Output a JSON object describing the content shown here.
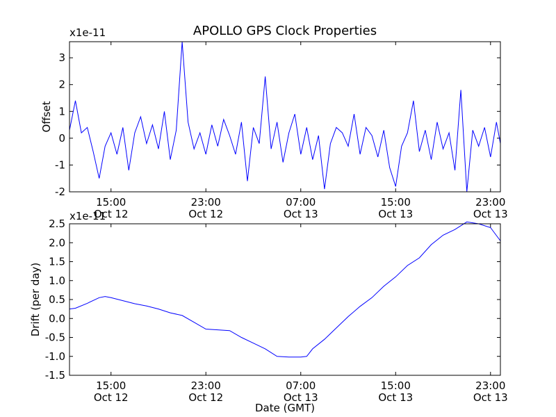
{
  "figure": {
    "title": "APOLLO GPS Clock Properties",
    "xlabel": "Date (GMT)",
    "line_color": "#0000ff"
  },
  "chart_data": [
    {
      "type": "line",
      "title": "APOLLO GPS Clock Properties",
      "ylabel": "Offset",
      "offset_text": "x1e-11",
      "xlabel": "",
      "x_range": [
        "Oct 12 11:30",
        "Oct 13 23:50"
      ],
      "ylim": [
        -2,
        3.6
      ],
      "y_ticks": [
        -2,
        -1,
        0,
        1,
        2,
        3
      ],
      "y_tick_labels": [
        "-2",
        "-1",
        "0",
        "1",
        "2",
        "3"
      ],
      "x_ticks": [
        "Oct 12 15:00",
        "Oct 12 23:00",
        "Oct 13 07:00",
        "Oct 13 15:00",
        "Oct 13 23:00"
      ],
      "x_tick_labels": [
        {
          "time": "15:00",
          "date": "Oct 12"
        },
        {
          "time": "23:00",
          "date": "Oct 12"
        },
        {
          "time": "07:00",
          "date": "Oct 13"
        },
        {
          "time": "15:00",
          "date": "Oct 13"
        },
        {
          "time": "23:00",
          "date": "Oct 13"
        }
      ],
      "grid": false,
      "series": [
        {
          "x": [
            "Oct 12 11:30",
            "Oct 12 12:00",
            "Oct 12 12:30",
            "Oct 12 13:00",
            "Oct 12 13:30",
            "Oct 12 14:00",
            "Oct 12 14:30",
            "Oct 12 15:00",
            "Oct 12 15:30",
            "Oct 12 16:00",
            "Oct 12 16:30",
            "Oct 12 17:00",
            "Oct 12 17:30",
            "Oct 12 18:00",
            "Oct 12 18:30",
            "Oct 12 19:00",
            "Oct 12 19:30",
            "Oct 12 20:00",
            "Oct 12 20:30",
            "Oct 12 21:00",
            "Oct 12 21:30",
            "Oct 12 22:00",
            "Oct 12 22:30",
            "Oct 12 23:00",
            "Oct 12 23:30",
            "Oct 13 00:00",
            "Oct 13 00:30",
            "Oct 13 01:00",
            "Oct 13 01:30",
            "Oct 13 02:00",
            "Oct 13 02:30",
            "Oct 13 03:00",
            "Oct 13 03:30",
            "Oct 13 04:00",
            "Oct 13 04:30",
            "Oct 13 05:00",
            "Oct 13 05:30",
            "Oct 13 06:00",
            "Oct 13 06:30",
            "Oct 13 07:00",
            "Oct 13 07:30",
            "Oct 13 08:00",
            "Oct 13 08:30",
            "Oct 13 09:00",
            "Oct 13 09:30",
            "Oct 13 10:00",
            "Oct 13 10:30",
            "Oct 13 11:00",
            "Oct 13 11:30",
            "Oct 13 12:00",
            "Oct 13 12:30",
            "Oct 13 13:00",
            "Oct 13 13:30",
            "Oct 13 14:00",
            "Oct 13 14:30",
            "Oct 13 15:00",
            "Oct 13 15:30",
            "Oct 13 16:00",
            "Oct 13 16:30",
            "Oct 13 17:00",
            "Oct 13 17:30",
            "Oct 13 18:00",
            "Oct 13 18:30",
            "Oct 13 19:00",
            "Oct 13 19:30",
            "Oct 13 20:00",
            "Oct 13 20:30",
            "Oct 13 21:00",
            "Oct 13 21:30",
            "Oct 13 22:00",
            "Oct 13 22:30",
            "Oct 13 23:00",
            "Oct 13 23:30",
            "Oct 13 23:50"
          ],
          "y": [
            0.3,
            1.4,
            0.2,
            0.4,
            -0.5,
            -1.5,
            -0.3,
            0.2,
            -0.6,
            0.4,
            -1.2,
            0.2,
            0.8,
            -0.2,
            0.5,
            -0.4,
            1.0,
            -0.8,
            0.3,
            3.6,
            0.6,
            -0.4,
            0.2,
            -0.6,
            0.5,
            -0.3,
            0.7,
            0.1,
            -0.6,
            0.6,
            -1.6,
            0.4,
            -0.2,
            2.3,
            -0.4,
            0.6,
            -0.9,
            0.2,
            0.9,
            -0.6,
            0.4,
            -0.8,
            0.1,
            -1.9,
            -0.2,
            0.4,
            0.2,
            -0.3,
            0.9,
            -0.6,
            0.4,
            0.1,
            -0.7,
            0.3,
            -1.1,
            -1.8,
            -0.3,
            0.2,
            1.4,
            -0.5,
            0.3,
            -0.8,
            0.6,
            -0.4,
            0.2,
            -1.2,
            1.8,
            -2.0,
            0.3,
            -0.3,
            0.4,
            -0.7,
            0.6,
            -0.2
          ]
        }
      ]
    },
    {
      "type": "line",
      "title": "",
      "ylabel": "Drift (per day)",
      "offset_text": "x1e-11",
      "xlabel": "Date (GMT)",
      "x_range": [
        "Oct 12 11:30",
        "Oct 13 23:50"
      ],
      "ylim": [
        -1.5,
        2.5
      ],
      "y_ticks": [
        -1.5,
        -1.0,
        -0.5,
        0.0,
        0.5,
        1.0,
        1.5,
        2.0,
        2.5
      ],
      "y_tick_labels": [
        "-1.5",
        "-1.0",
        "-0.5",
        "0.0",
        "0.5",
        "1.0",
        "1.5",
        "2.0",
        "2.5"
      ],
      "x_ticks": [
        "Oct 12 15:00",
        "Oct 12 23:00",
        "Oct 13 07:00",
        "Oct 13 15:00",
        "Oct 13 23:00"
      ],
      "x_tick_labels": [
        {
          "time": "15:00",
          "date": "Oct 12"
        },
        {
          "time": "23:00",
          "date": "Oct 12"
        },
        {
          "time": "07:00",
          "date": "Oct 13"
        },
        {
          "time": "15:00",
          "date": "Oct 13"
        },
        {
          "time": "23:00",
          "date": "Oct 13"
        }
      ],
      "grid": false,
      "series": [
        {
          "x": [
            "Oct 12 11:30",
            "Oct 12 12:00",
            "Oct 12 13:00",
            "Oct 12 14:00",
            "Oct 12 14:30",
            "Oct 12 15:00",
            "Oct 12 16:00",
            "Oct 12 17:00",
            "Oct 12 18:00",
            "Oct 12 19:00",
            "Oct 12 20:00",
            "Oct 12 21:00",
            "Oct 12 22:00",
            "Oct 12 23:00",
            "Oct 13 00:00",
            "Oct 13 01:00",
            "Oct 13 02:00",
            "Oct 13 03:00",
            "Oct 13 04:00",
            "Oct 13 05:00",
            "Oct 13 06:00",
            "Oct 13 07:00",
            "Oct 13 07:30",
            "Oct 13 08:00",
            "Oct 13 09:00",
            "Oct 13 10:00",
            "Oct 13 11:00",
            "Oct 13 12:00",
            "Oct 13 13:00",
            "Oct 13 14:00",
            "Oct 13 15:00",
            "Oct 13 16:00",
            "Oct 13 17:00",
            "Oct 13 18:00",
            "Oct 13 19:00",
            "Oct 13 20:00",
            "Oct 13 21:00",
            "Oct 13 22:00",
            "Oct 13 23:00",
            "Oct 13 23:50"
          ],
          "y": [
            0.25,
            0.27,
            0.4,
            0.55,
            0.58,
            0.55,
            0.47,
            0.39,
            0.33,
            0.25,
            0.15,
            0.08,
            -0.1,
            -0.28,
            -0.3,
            -0.32,
            -0.5,
            -0.65,
            -0.8,
            -1.0,
            -1.02,
            -1.02,
            -1.0,
            -0.8,
            -0.55,
            -0.25,
            0.05,
            0.32,
            0.55,
            0.85,
            1.1,
            1.4,
            1.6,
            1.95,
            2.2,
            2.35,
            2.55,
            2.5,
            2.4,
            2.05
          ]
        }
      ]
    }
  ]
}
